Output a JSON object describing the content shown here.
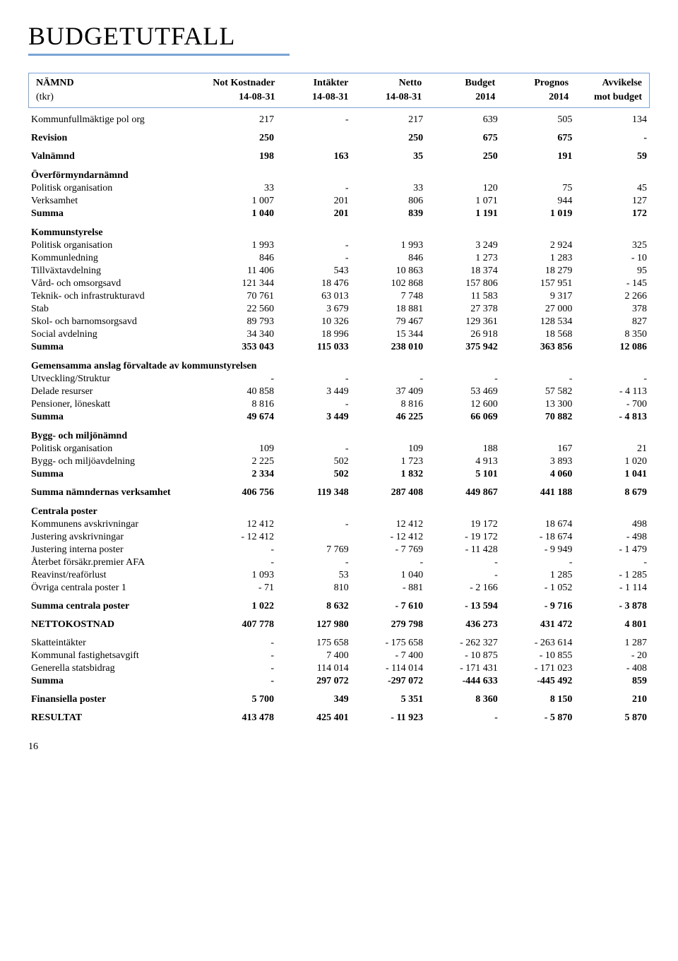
{
  "title": "BUDGETUTFALL",
  "header": {
    "columns_line1": [
      "NÄMND",
      "Not  Kostnader",
      "Intäkter",
      "Netto",
      "Budget",
      "Prognos",
      "Avvikelse"
    ],
    "columns_line2": [
      "(tkr)",
      "14-08-31",
      "14-08-31",
      "14-08-31",
      "2014",
      "2014",
      "mot budget"
    ]
  },
  "sections": [
    {
      "rows": [
        {
          "label": "Kommunfullmäktige pol org",
          "cells": [
            "217",
            "-",
            "217",
            "639",
            "505",
            "134"
          ]
        }
      ]
    },
    {
      "rows": [
        {
          "label": "Revision",
          "cells": [
            "250",
            "",
            "250",
            "675",
            "675",
            "-"
          ],
          "bold": true
        }
      ]
    },
    {
      "rows": [
        {
          "label": "Valnämnd",
          "cells": [
            "198",
            "163",
            "35",
            "250",
            "191",
            "59"
          ],
          "bold": true
        }
      ]
    },
    {
      "head": "Överförmyndarnämnd",
      "rows": [
        {
          "label": "Politisk organisation",
          "cells": [
            "33",
            "-",
            "33",
            "120",
            "75",
            "45"
          ]
        },
        {
          "label": "Verksamhet",
          "cells": [
            "1 007",
            "201",
            "806",
            "1 071",
            "944",
            "127"
          ]
        },
        {
          "label": "Summa",
          "cells": [
            "1 040",
            "201",
            "839",
            "1 191",
            "1 019",
            "172"
          ],
          "bold": true
        }
      ]
    },
    {
      "head": "Kommunstyrelse",
      "rows": [
        {
          "label": "Politisk organisation",
          "cells": [
            "1 993",
            "-",
            "1 993",
            "3 249",
            "2 924",
            "325"
          ]
        },
        {
          "label": "Kommunledning",
          "cells": [
            "846",
            "-",
            "846",
            "1 273",
            "1 283",
            "-      10"
          ]
        },
        {
          "label": "Tillväxtavdelning",
          "cells": [
            "11 406",
            "543",
            "10 863",
            "18 374",
            "18 279",
            "95"
          ]
        },
        {
          "label": "Vård- och omsorgsavd",
          "cells": [
            "121 344",
            "18 476",
            "102 868",
            "157 806",
            "157 951",
            "-    145"
          ]
        },
        {
          "label": "Teknik- och infrastrukturavd",
          "cells": [
            "70 761",
            "63 013",
            "7 748",
            "11 583",
            "9 317",
            "2 266"
          ]
        },
        {
          "label": "Stab",
          "cells": [
            "22 560",
            "3 679",
            "18 881",
            "27 378",
            "27 000",
            "378"
          ]
        },
        {
          "label": "Skol- och barnomsorgsavd",
          "cells": [
            "89 793",
            "10 326",
            "79 467",
            "129 361",
            "128 534",
            "827"
          ]
        },
        {
          "label": "Social avdelning",
          "cells": [
            "34 340",
            "18 996",
            "15 344",
            "26 918",
            "18 568",
            "8 350"
          ]
        },
        {
          "label": "Summa",
          "cells": [
            "353 043",
            "115 033",
            "238 010",
            "375 942",
            "363 856",
            "12 086"
          ],
          "bold": true
        }
      ]
    },
    {
      "head": "Gemensamma anslag förvaltade av kommunstyrelsen",
      "rows": [
        {
          "label": "Utveckling/Struktur",
          "cells": [
            "-",
            "-",
            "-",
            "-",
            "-",
            "-"
          ]
        },
        {
          "label": "Delade resurser",
          "cells": [
            "40 858",
            "3 449",
            "37 409",
            "53 469",
            "57 582",
            "-   4 113"
          ]
        },
        {
          "label": "Pensioner, löneskatt",
          "cells": [
            "8 816",
            "-",
            "8 816",
            "12 600",
            "13 300",
            "-      700"
          ]
        },
        {
          "label": "Summa",
          "cells": [
            "49 674",
            "3 449",
            "46 225",
            "66 069",
            "70 882",
            "-   4 813"
          ],
          "bold": true
        }
      ]
    },
    {
      "head": "Bygg- och miljönämnd",
      "rows": [
        {
          "label": "Politisk organisation",
          "cells": [
            "109",
            "-",
            "109",
            "188",
            "167",
            "21"
          ]
        },
        {
          "label": "Bygg- och miljöavdelning",
          "cells": [
            "2 225",
            "502",
            "1 723",
            "4 913",
            "3 893",
            "1 020"
          ]
        },
        {
          "label": "Summa",
          "cells": [
            "2 334",
            "502",
            "1 832",
            "5 101",
            "4 060",
            "1 041"
          ],
          "bold": true
        }
      ]
    },
    {
      "rows": [
        {
          "label": "Summa nämndernas verksamhet",
          "cells": [
            "406 756",
            "119 348",
            "287 408",
            "449 867",
            "441 188",
            "8 679"
          ],
          "bold": true
        }
      ]
    },
    {
      "head": "Centrala poster",
      "rows": [
        {
          "label": "Kommunens avskrivningar",
          "cells": [
            "12 412",
            "-",
            "12 412",
            "19 172",
            "18 674",
            "498"
          ]
        },
        {
          "label": "Justering avskrivningar",
          "cells": [
            "-   12 412",
            "",
            "-  12 412",
            "-   19 172",
            "-   18 674",
            "-      498"
          ]
        },
        {
          "label": "Justering interna poster",
          "cells": [
            "-",
            "7 769",
            "-    7 769",
            "-   11 428",
            "-     9 949",
            "-   1 479"
          ]
        },
        {
          "label": "Återbet försäkr.premier AFA",
          "cells": [
            "-",
            "-",
            "-",
            "-",
            "-",
            "-"
          ]
        },
        {
          "label": "Reavinst/reaförlust",
          "cells": [
            "1 093",
            "53",
            "1 040",
            "-",
            "1 285",
            "-   1 285"
          ]
        },
        {
          "label": "Övriga centrala poster           1",
          "cells": [
            "-       71",
            "810",
            "-       881",
            "-     2 166",
            "-     1 052",
            "-   1 114"
          ]
        }
      ]
    },
    {
      "rows": [
        {
          "label": "Summa centrala poster",
          "cells": [
            "1 022",
            "8 632",
            "-    7 610",
            "-   13 594",
            "-     9 716",
            "-   3 878"
          ],
          "bold": true
        }
      ]
    },
    {
      "rows": [
        {
          "label": "NETTOKOSTNAD",
          "cells": [
            "407 778",
            "127 980",
            "279 798",
            "436 273",
            "431 472",
            "4 801"
          ],
          "bold": true
        }
      ]
    },
    {
      "rows": [
        {
          "label": "Skatteintäkter",
          "cells": [
            "-",
            "175 658",
            "- 175 658",
            "- 262 327",
            "- 263 614",
            "1 287"
          ]
        },
        {
          "label": "Kommunal fastighetsavgift",
          "cells": [
            "-",
            "7 400",
            "-    7 400",
            "-   10 875",
            "-   10 855",
            "-        20"
          ]
        },
        {
          "label": "Generella statsbidrag",
          "cells": [
            "-",
            "114 014",
            "- 114 014",
            "- 171 431",
            "- 171 023",
            "-      408"
          ]
        },
        {
          "label": "Summa",
          "cells": [
            "-",
            "297 072",
            "-297 072",
            "-444 633",
            "-445 492",
            "859"
          ],
          "bold": true
        }
      ]
    },
    {
      "rows": [
        {
          "label": "Finansiella poster",
          "cells": [
            "5 700",
            "349",
            "5 351",
            "8 360",
            "8 150",
            "210"
          ],
          "bold": true
        }
      ]
    },
    {
      "rows": [
        {
          "label": "RESULTAT",
          "cells": [
            "413 478",
            "425 401",
            "-  11 923",
            "-",
            "-     5 870",
            "5 870"
          ],
          "bold": true
        }
      ]
    }
  ],
  "page_number": "16"
}
